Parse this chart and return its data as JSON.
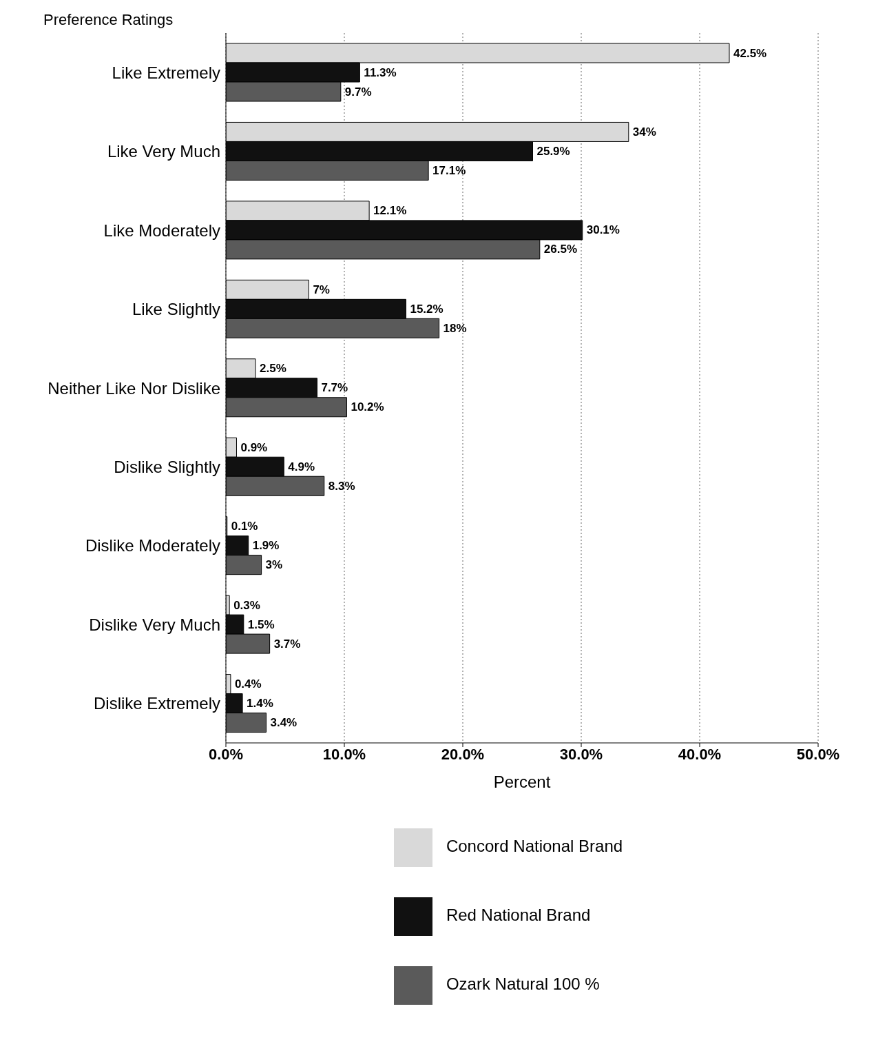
{
  "chart_data": {
    "type": "bar",
    "orientation": "horizontal",
    "title": "Preference Ratings",
    "xlabel": "Percent",
    "categories": [
      "Like Extremely",
      "Like Very Much",
      "Like Moderately",
      "Like Slightly",
      "Neither Like Nor Dislike",
      "Dislike Slightly",
      "Dislike Moderately",
      "Dislike Very Much",
      "Dislike Extremely"
    ],
    "series": [
      {
        "name": "Concord National Brand",
        "color": "#d9d9d9",
        "values": [
          42.5,
          34,
          12.1,
          7,
          2.5,
          0.9,
          0.1,
          0.3,
          0.4
        ],
        "value_labels": [
          "42.5%",
          "34%",
          "12.1%",
          "7%",
          "2.5%",
          "0.9%",
          "0.1%",
          "0.3%",
          "0.4%"
        ]
      },
      {
        "name": "Red National Brand",
        "color": "#111111",
        "values": [
          11.3,
          25.9,
          30.1,
          15.2,
          7.7,
          4.9,
          1.9,
          1.5,
          1.4
        ],
        "value_labels": [
          "11.3%",
          "25.9%",
          "30.1%",
          "15.2%",
          "7.7%",
          "4.9%",
          "1.9%",
          "1.5%",
          "1.4%"
        ]
      },
      {
        "name": "Ozark Natural 100 %",
        "color": "#5a5a5a",
        "values": [
          9.7,
          17.1,
          26.5,
          18,
          10.2,
          8.3,
          3,
          3.7,
          3.4
        ],
        "value_labels": [
          "9.7%",
          "17.1%",
          "26.5%",
          "18%",
          "10.2%",
          "8.3%",
          "3%",
          "3.7%",
          "3.4%"
        ]
      }
    ],
    "xlim": [
      0,
      50
    ],
    "xticks": [
      {
        "value": 0,
        "label": "0.0%"
      },
      {
        "value": 10,
        "label": "10.0%"
      },
      {
        "value": 20,
        "label": "20.0%"
      },
      {
        "value": 30,
        "label": "30.0%"
      },
      {
        "value": 40,
        "label": "40.0%"
      },
      {
        "value": 50,
        "label": "50.0%"
      }
    ],
    "grid": "x",
    "legend": "bottom"
  }
}
